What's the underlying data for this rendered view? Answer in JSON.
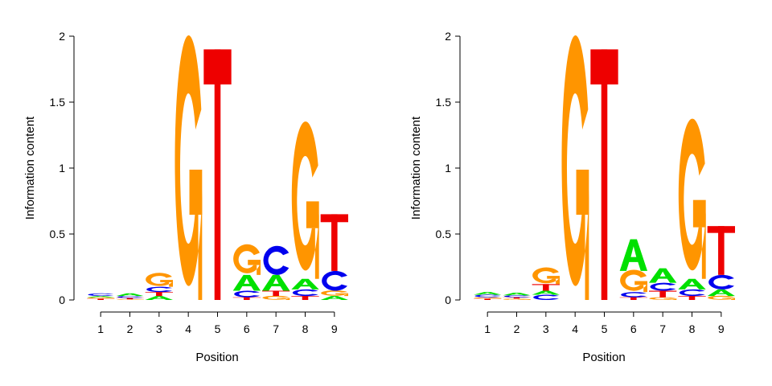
{
  "colors": {
    "A": "#00e000",
    "C": "#0000ee",
    "G": "#ff9500",
    "T": "#ee0000"
  },
  "chart_data": [
    {
      "type": "sequence-logo",
      "xlabel": "Position",
      "ylabel": "Information content",
      "ylim": [
        0,
        2
      ],
      "yticks": [
        "0",
        "0.5",
        "1",
        "1.5",
        "2"
      ],
      "positions": [
        "1",
        "2",
        "3",
        "4",
        "5",
        "6",
        "7",
        "8",
        "9"
      ],
      "stacks": [
        [
          {
            "letter": "T",
            "height": 0.01
          },
          {
            "letter": "G",
            "height": 0.01
          },
          {
            "letter": "A",
            "height": 0.01
          },
          {
            "letter": "C",
            "height": 0.02
          }
        ],
        [
          {
            "letter": "G",
            "height": 0.005
          },
          {
            "letter": "T",
            "height": 0.01
          },
          {
            "letter": "C",
            "height": 0.015
          },
          {
            "letter": "A",
            "height": 0.02
          }
        ],
        [
          {
            "letter": "A",
            "height": 0.03
          },
          {
            "letter": "T",
            "height": 0.03
          },
          {
            "letter": "C",
            "height": 0.04
          },
          {
            "letter": "G",
            "height": 0.1
          }
        ],
        [
          {
            "letter": "G",
            "height": 1.9
          }
        ],
        [
          {
            "letter": "T",
            "height": 1.9
          }
        ],
        [
          {
            "letter": "T",
            "height": 0.02
          },
          {
            "letter": "C",
            "height": 0.05
          },
          {
            "letter": "A",
            "height": 0.12
          },
          {
            "letter": "G",
            "height": 0.22
          }
        ],
        [
          {
            "letter": "G",
            "height": 0.03
          },
          {
            "letter": "T",
            "height": 0.04
          },
          {
            "letter": "A",
            "height": 0.12
          },
          {
            "letter": "C",
            "height": 0.22
          }
        ],
        [
          {
            "letter": "T",
            "height": 0.03
          },
          {
            "letter": "C",
            "height": 0.05
          },
          {
            "letter": "A",
            "height": 0.08
          },
          {
            "letter": "G",
            "height": 1.13
          }
        ],
        [
          {
            "letter": "A",
            "height": 0.03
          },
          {
            "letter": "G",
            "height": 0.04
          },
          {
            "letter": "C",
            "height": 0.15
          },
          {
            "letter": "T",
            "height": 0.43
          }
        ]
      ]
    },
    {
      "type": "sequence-logo",
      "xlabel": "Position",
      "ylabel": "Information content",
      "ylim": [
        0,
        2
      ],
      "yticks": [
        "0",
        "0.5",
        "1",
        "1.5",
        "2"
      ],
      "positions": [
        "1",
        "2",
        "3",
        "4",
        "5",
        "6",
        "7",
        "8",
        "9"
      ],
      "stacks": [
        [
          {
            "letter": "T",
            "height": 0.01
          },
          {
            "letter": "G",
            "height": 0.01
          },
          {
            "letter": "C",
            "height": 0.02
          },
          {
            "letter": "A",
            "height": 0.02
          }
        ],
        [
          {
            "letter": "G",
            "height": 0.01
          },
          {
            "letter": "T",
            "height": 0.01
          },
          {
            "letter": "C",
            "height": 0.015
          },
          {
            "letter": "A",
            "height": 0.02
          }
        ],
        [
          {
            "letter": "C",
            "height": 0.04
          },
          {
            "letter": "A",
            "height": 0.03
          },
          {
            "letter": "T",
            "height": 0.05
          },
          {
            "letter": "G",
            "height": 0.12
          }
        ],
        [
          {
            "letter": "G",
            "height": 1.9
          }
        ],
        [
          {
            "letter": "T",
            "height": 1.9
          }
        ],
        [
          {
            "letter": "T",
            "height": 0.02
          },
          {
            "letter": "C",
            "height": 0.04
          },
          {
            "letter": "G",
            "height": 0.16
          },
          {
            "letter": "A",
            "height": 0.24
          }
        ],
        [
          {
            "letter": "G",
            "height": 0.02
          },
          {
            "letter": "T",
            "height": 0.05
          },
          {
            "letter": "C",
            "height": 0.06
          },
          {
            "letter": "A",
            "height": 0.11
          }
        ],
        [
          {
            "letter": "T",
            "height": 0.03
          },
          {
            "letter": "C",
            "height": 0.05
          },
          {
            "letter": "A",
            "height": 0.08
          },
          {
            "letter": "G",
            "height": 1.15
          }
        ],
        [
          {
            "letter": "G",
            "height": 0.03
          },
          {
            "letter": "A",
            "height": 0.05
          },
          {
            "letter": "C",
            "height": 0.11
          },
          {
            "letter": "T",
            "height": 0.37
          }
        ]
      ]
    }
  ]
}
